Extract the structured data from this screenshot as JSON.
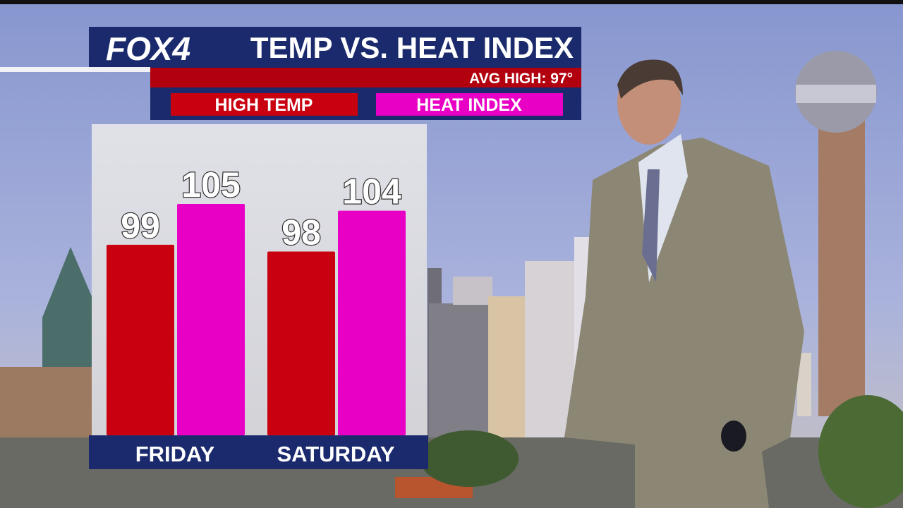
{
  "chart_data": {
    "type": "bar",
    "logo": "FOX4",
    "title": "TEMP VS. HEAT INDEX",
    "subtitle": "AVG HIGH: 97°",
    "categories": [
      "FRIDAY",
      "SATURDAY"
    ],
    "series": [
      {
        "name": "HIGH TEMP",
        "color": "#c8000f",
        "values": [
          99,
          98
        ]
      },
      {
        "name": "HEAT INDEX",
        "color": "#e800c4",
        "values": [
          105,
          104
        ]
      }
    ],
    "ylim": [
      71,
      105
    ]
  }
}
